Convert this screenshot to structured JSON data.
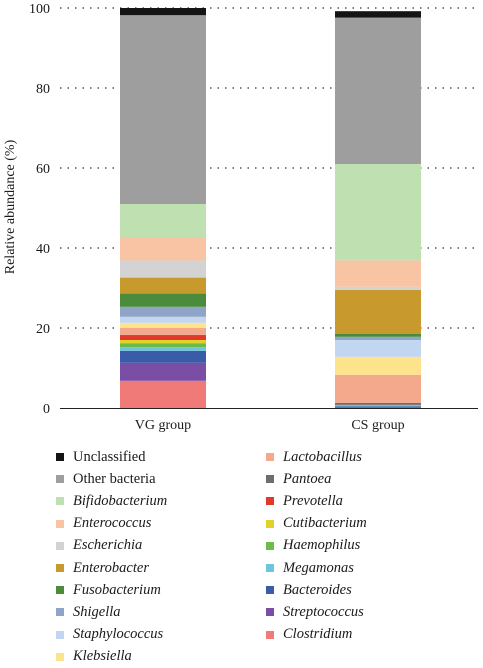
{
  "chart_data": {
    "type": "bar",
    "stacked": true,
    "categories": [
      "VG group",
      "CS group"
    ],
    "ylabel": "Relative abundance (%)",
    "xlabel": "",
    "ylim": [
      0,
      100
    ],
    "yticks": [
      0,
      20,
      40,
      60,
      80,
      100
    ],
    "grid": "dotted horizontal",
    "legend_placement": "bottom, two columns",
    "series": [
      {
        "name": "Clostridium",
        "color": "#f07a78",
        "italic": true,
        "values": [
          6.8,
          0.0
        ]
      },
      {
        "name": "Streptococcus",
        "color": "#7b4ea6",
        "italic": true,
        "values": [
          4.5,
          0.2
        ]
      },
      {
        "name": "Bacteroides",
        "color": "#3a5ca8",
        "italic": true,
        "values": [
          3.0,
          0.2
        ]
      },
      {
        "name": "Megamonas",
        "color": "#6ec6dc",
        "italic": true,
        "values": [
          0.9,
          0.1
        ]
      },
      {
        "name": "Haemophilus",
        "color": "#6bba4a",
        "italic": true,
        "values": [
          1.0,
          0.1
        ]
      },
      {
        "name": "Cutibacterium",
        "color": "#e0d22a",
        "italic": true,
        "values": [
          0.8,
          0.1
        ]
      },
      {
        "name": "Prevotella",
        "color": "#e23a2a",
        "italic": true,
        "values": [
          1.0,
          0.1
        ]
      },
      {
        "name": "Pantoea",
        "color": "#6e6e6e",
        "italic": true,
        "values": [
          0.3,
          0.5
        ]
      },
      {
        "name": "Lactobacillus",
        "color": "#f5a98c",
        "italic": true,
        "values": [
          1.7,
          7.0
        ]
      },
      {
        "name": "Klebsiella",
        "color": "#fde38c",
        "italic": true,
        "values": [
          1.3,
          4.5
        ]
      },
      {
        "name": "Staphylococcus",
        "color": "#c2d6f2",
        "italic": true,
        "values": [
          1.5,
          4.2
        ]
      },
      {
        "name": "Shigella",
        "color": "#8fa5c8",
        "italic": true,
        "values": [
          2.5,
          0.8
        ]
      },
      {
        "name": "Fusobacterium",
        "color": "#4a8c3c",
        "italic": true,
        "values": [
          3.3,
          0.7
        ]
      },
      {
        "name": "Enterobacter",
        "color": "#c89a2e",
        "italic": true,
        "values": [
          4.0,
          11.0
        ]
      },
      {
        "name": "Escherichia",
        "color": "#d3d3d3",
        "italic": true,
        "values": [
          4.3,
          0.8
        ]
      },
      {
        "name": "Enterococcus",
        "color": "#f8c4a4",
        "italic": true,
        "values": [
          5.6,
          6.6
        ]
      },
      {
        "name": "Bifidobacterium",
        "color": "#bfe0b0",
        "italic": true,
        "values": [
          8.5,
          24.1
        ]
      },
      {
        "name": "Other bacteria",
        "color": "#9e9e9e",
        "italic": false,
        "values": [
          47.2,
          36.6
        ]
      },
      {
        "name": "Unclassified",
        "color": "#141414",
        "italic": false,
        "values": [
          1.8,
          1.6
        ]
      }
    ]
  },
  "legend": {
    "left": [
      {
        "label": "Unclassified",
        "color": "#141414",
        "italic": false
      },
      {
        "label": "Other bacteria",
        "color": "#9e9e9e",
        "italic": false
      },
      {
        "label": "Bifidobacterium",
        "color": "#bfe0b0",
        "italic": true
      },
      {
        "label": "Enterococcus",
        "color": "#f8c4a4",
        "italic": true
      },
      {
        "label": "Escherichia",
        "color": "#d3d3d3",
        "italic": true
      },
      {
        "label": "Enterobacter",
        "color": "#c89a2e",
        "italic": true
      },
      {
        "label": "Fusobacterium",
        "color": "#4a8c3c",
        "italic": true
      },
      {
        "label": "Shigella",
        "color": "#8fa5c8",
        "italic": true
      },
      {
        "label": "Staphylococcus",
        "color": "#c2d6f2",
        "italic": true
      },
      {
        "label": "Klebsiella",
        "color": "#fde38c",
        "italic": true
      }
    ],
    "right": [
      {
        "label": "Lactobacillus",
        "color": "#f5a98c",
        "italic": true
      },
      {
        "label": "Pantoea",
        "color": "#6e6e6e",
        "italic": true
      },
      {
        "label": "Prevotella",
        "color": "#e23a2a",
        "italic": true
      },
      {
        "label": "Cutibacterium",
        "color": "#e0d22a",
        "italic": true
      },
      {
        "label": "Haemophilus",
        "color": "#6bba4a",
        "italic": true
      },
      {
        "label": "Megamonas",
        "color": "#6ec6dc",
        "italic": true
      },
      {
        "label": "Bacteroides",
        "color": "#3a5ca8",
        "italic": true
      },
      {
        "label": "Streptococcus",
        "color": "#7b4ea6",
        "italic": true
      },
      {
        "label": "Clostridium",
        "color": "#f07a78",
        "italic": true
      }
    ]
  }
}
